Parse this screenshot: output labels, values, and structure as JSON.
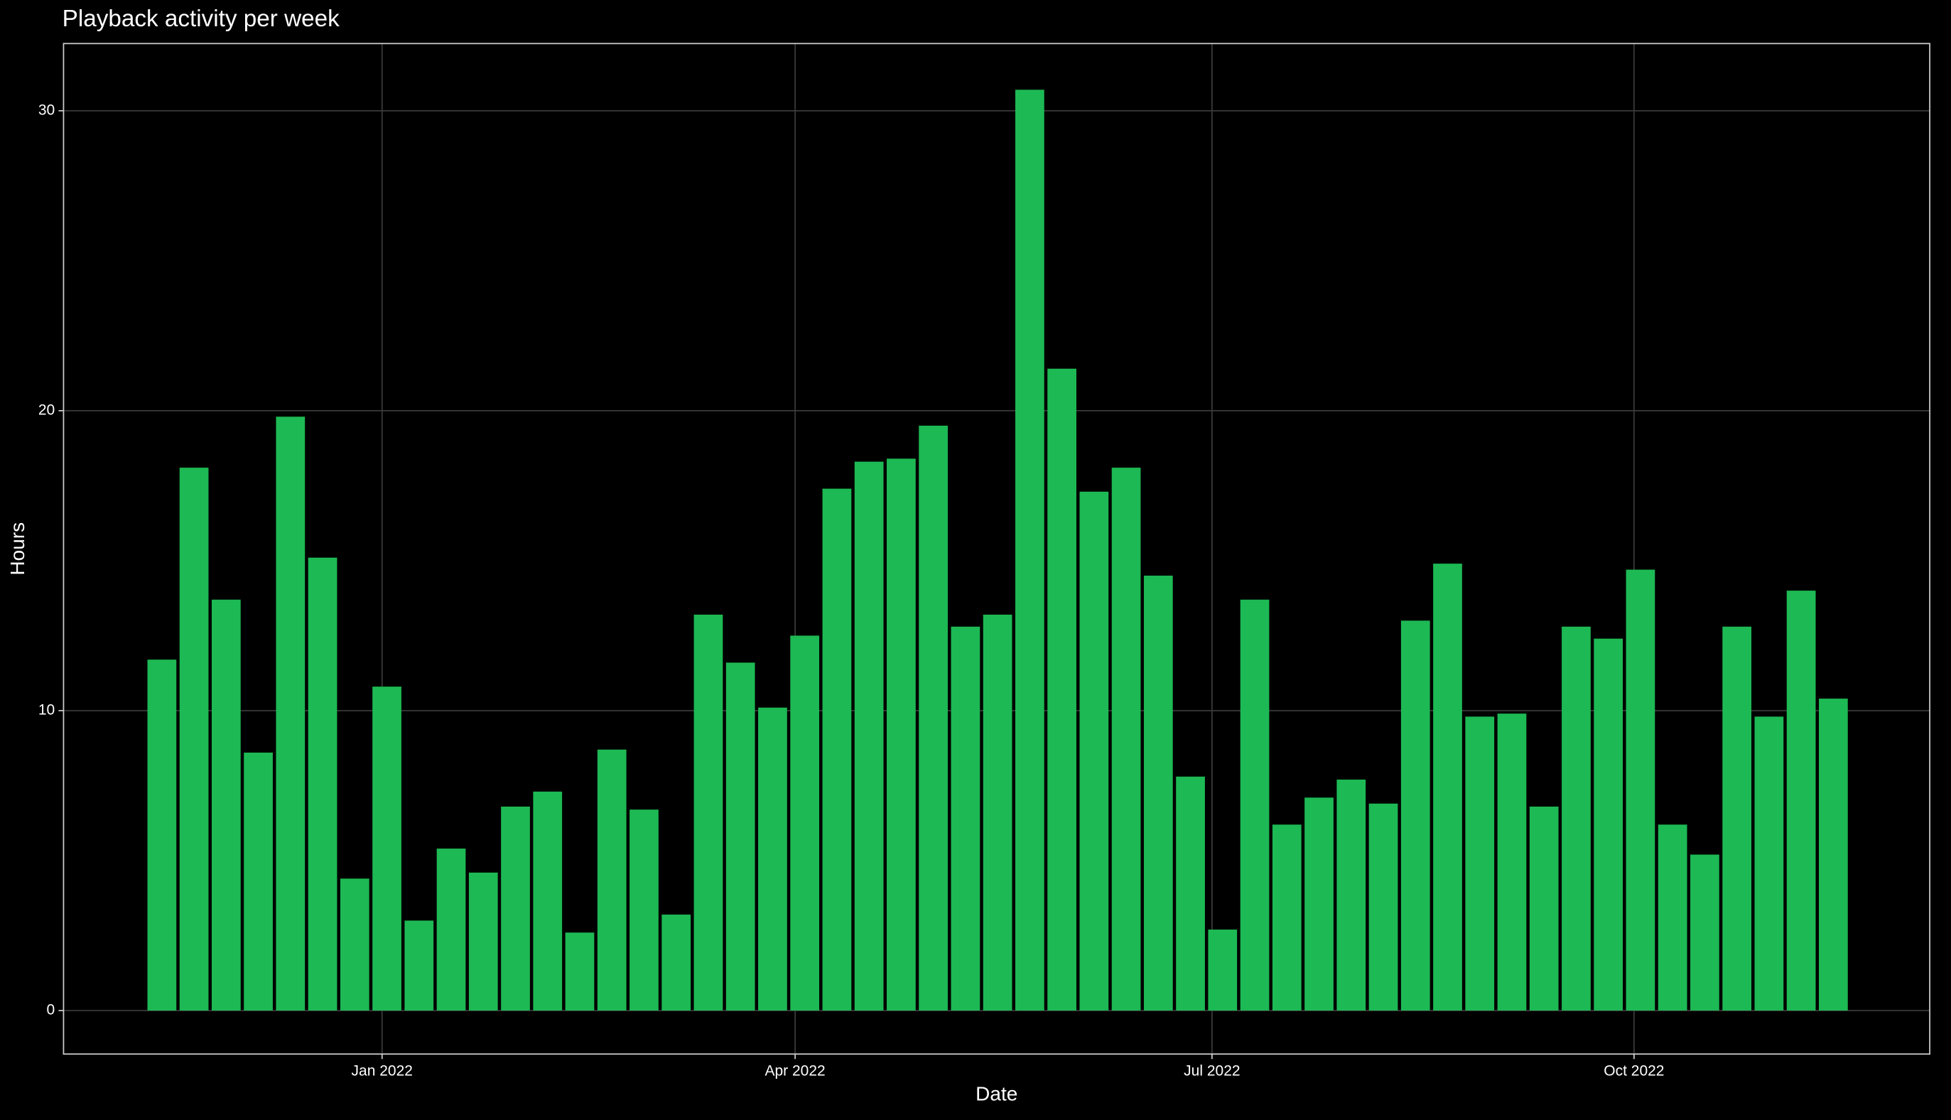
{
  "chart_data": {
    "type": "bar",
    "title": "Playback activity per week",
    "x_label": "Date",
    "y_label": "Hours",
    "color": "#1db954",
    "categories": [
      null,
      null,
      null,
      null,
      null,
      null,
      null,
      null,
      null,
      null,
      null,
      null,
      null,
      null,
      null,
      null,
      null,
      null,
      null,
      null,
      null,
      null,
      null,
      null,
      null,
      null,
      null,
      null,
      null,
      null,
      null,
      null,
      null,
      null,
      null,
      null,
      null,
      null,
      null,
      null,
      null,
      null,
      null,
      null,
      null,
      null,
      null,
      null,
      null,
      null,
      null,
      null,
      null
    ],
    "values": [
      11.7,
      18.1,
      13.7,
      8.6,
      19.8,
      15.1,
      4.4,
      10.8,
      3.0,
      5.4,
      4.6,
      6.8,
      7.3,
      2.6,
      8.7,
      6.7,
      3.2,
      13.2,
      11.6,
      10.1,
      12.5,
      17.4,
      18.3,
      18.4,
      19.5,
      12.8,
      13.2,
      30.7,
      21.4,
      17.3,
      18.1,
      14.5,
      7.8,
      2.7,
      13.7,
      6.2,
      7.1,
      7.7,
      6.9,
      13.0,
      14.9,
      9.8,
      9.9,
      6.8,
      12.8,
      12.4,
      14.7,
      6.2,
      5.2,
      12.8,
      9.8,
      14.0,
      10.4
    ],
    "xlim": [
      -3.06,
      55.0
    ],
    "xticks": [
      {
        "value": 6.85,
        "label": "Jan 2022"
      },
      {
        "value": 19.7,
        "label": "Apr 2022"
      },
      {
        "value": 32.67,
        "label": "Jul 2022"
      },
      {
        "value": 45.8,
        "label": "Oct 2022"
      }
    ],
    "ylim": [
      -1.45,
      32.24
    ],
    "yticks": [
      0,
      10,
      20,
      30
    ],
    "grid": true
  }
}
